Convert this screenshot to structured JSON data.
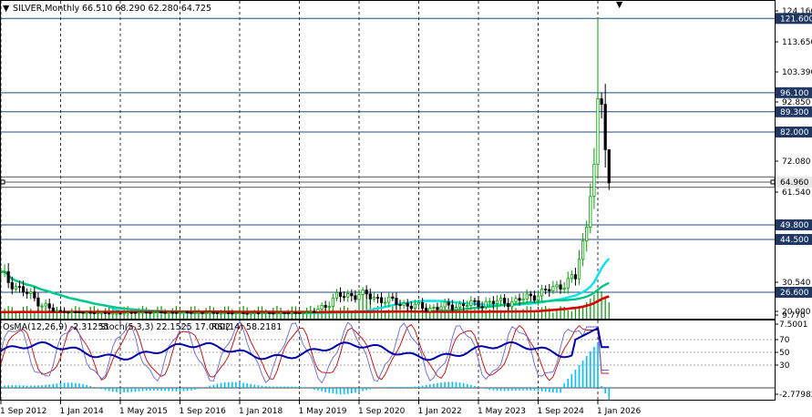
{
  "header": {
    "symbol": "SILVER,Monthly",
    "ohlc": "66.510 68.290 62.280 64.725"
  },
  "indicator_header": {
    "osma": "OsMA(12,26,9) -2.31255",
    "stoch": "Stoch(5,3,3) 22.1525 17.0002",
    "rsi": "RSI(14) 58.2181"
  },
  "colors": {
    "up_candle": "#00a000",
    "down_candle": "#000000",
    "volume": "#009900",
    "ma_fast": "#00e5ee",
    "ma_mid": "#00c887",
    "ma_slow": "#dd0000",
    "level_lines": "#1f4e79",
    "osma_hist": "#00bfff",
    "stoch_main": "#0000aa",
    "stoch_signal": "#cc0000",
    "rsi": "#3344ee",
    "label_bg": "#1f3864"
  },
  "chart_data": {
    "type": "candlestick",
    "title": "SILVER,Monthly",
    "price_axis_ticks": [
      "124.160",
      "113.650",
      "103.390",
      "92.850",
      "82.000",
      "72.080",
      "61.540",
      "20.000",
      "30.540",
      "9.770"
    ],
    "level_labels": [
      "121.600",
      "96.100",
      "89.300",
      "82.000",
      "64.960",
      "49.800",
      "44.500",
      "26.600"
    ],
    "current_price_label": "64.960",
    "osc_axis_ticks": [
      "7.5001",
      "70",
      "50",
      "30",
      "-2.77982"
    ],
    "x_ticks": [
      "1 Sep 2012",
      "1 Jan 2014",
      "1 May 2015",
      "1 Sep 2016",
      "1 Jan 2018",
      "1 May 2019",
      "1 Sep 2020",
      "1 Jan 2022",
      "1 May 2023",
      "1 Sep 2024",
      "1 Jan 2026"
    ],
    "candles_approx": [
      {
        "period": "2012",
        "close": 33
      },
      {
        "period": "2013",
        "close": 21
      },
      {
        "period": "2015",
        "close": 15
      },
      {
        "period": "2016",
        "close": 18
      },
      {
        "period": "2018",
        "close": 15
      },
      {
        "period": "2019",
        "close": 17
      },
      {
        "period": "2020-08",
        "close": 27
      },
      {
        "period": "2022",
        "close": 22
      },
      {
        "period": "2023",
        "close": 23
      },
      {
        "period": "2024",
        "close": 29
      },
      {
        "period": "2025-10",
        "close": 48
      },
      {
        "period": "2025-12",
        "close": 71
      },
      {
        "period": "2026-01",
        "close": 94
      },
      {
        "period": "2026-02",
        "close": 76
      },
      {
        "period": "2026-03",
        "close": 64.725
      }
    ]
  }
}
